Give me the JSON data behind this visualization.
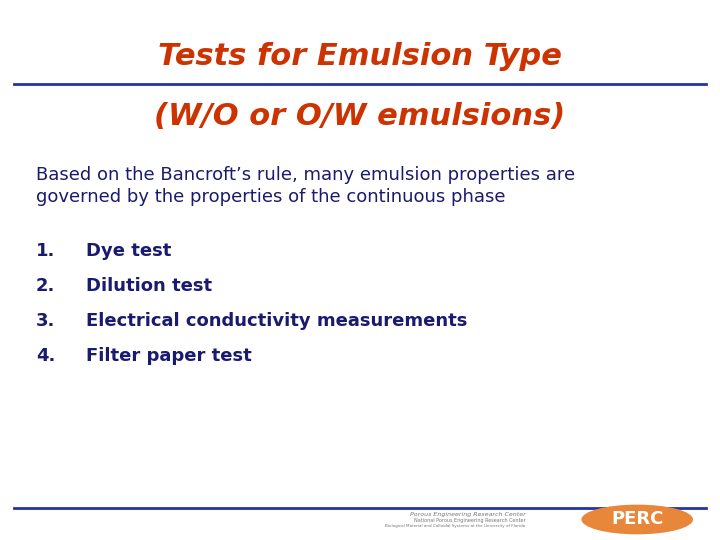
{
  "bg_color": "#ffffff",
  "title_line1": "Tests for Emulsion Type",
  "title_line2": "(W/O or O/W emulsions)",
  "title_color": "#cc3300",
  "title_fontsize": 22,
  "title_fontstyle": "italic",
  "title_fontweight": "bold",
  "line_color": "#2233aa",
  "line_width": 2.0,
  "body_text_line1": "Based on the Bancroft’s rule, many emulsion properties are",
  "body_text_line2": "governed by the properties of the continuous phase",
  "body_color": "#1a1a6e",
  "body_fontsize": 13,
  "list_numbers": [
    "1.",
    "2.",
    "3.",
    "4."
  ],
  "list_texts": [
    "Dye test",
    "Dilution test",
    "Electrical conductivity measurements",
    "Filter paper test"
  ],
  "list_color": "#1a1a6e",
  "list_fontsize": 13,
  "list_fontweight": "bold",
  "footer_logo_text": "PERC",
  "footer_logo_bg": "#e8873a",
  "footer_small_line1": "Porous Engineering Research Center",
  "footer_small_line2": "National Porous Engineering Research Center",
  "footer_small_line3": "Biological Material and Colloidal Systems at the University of Florida",
  "footer_text_color": "#777777"
}
